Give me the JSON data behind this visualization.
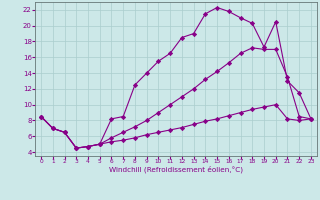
{
  "xlabel": "Windchill (Refroidissement éolien,°C)",
  "background_color": "#cce8e8",
  "grid_color": "#aacece",
  "line_color": "#880088",
  "xlim": [
    -0.5,
    23.5
  ],
  "ylim": [
    3.5,
    23.0
  ],
  "xticks": [
    0,
    1,
    2,
    3,
    4,
    5,
    6,
    7,
    8,
    9,
    10,
    11,
    12,
    13,
    14,
    15,
    16,
    17,
    18,
    19,
    20,
    21,
    22,
    23
  ],
  "yticks": [
    4,
    6,
    8,
    10,
    12,
    14,
    16,
    18,
    20,
    22
  ],
  "curve1_x": [
    0,
    1,
    2,
    3,
    4,
    5,
    6,
    7,
    8,
    9,
    10,
    11,
    12,
    13,
    14,
    15,
    16,
    17,
    18,
    19,
    20,
    21,
    22,
    23
  ],
  "curve1_y": [
    8.5,
    7.0,
    6.5,
    4.5,
    4.7,
    5.0,
    8.2,
    8.5,
    12.5,
    14.0,
    15.5,
    16.5,
    18.5,
    19.0,
    21.5,
    22.3,
    21.8,
    21.0,
    20.3,
    17.3,
    20.5,
    13.0,
    11.5,
    8.2
  ],
  "curve2_x": [
    0,
    1,
    2,
    3,
    4,
    5,
    6,
    7,
    8,
    9,
    10,
    11,
    12,
    13,
    14,
    15,
    16,
    17,
    18,
    19,
    20,
    21,
    22,
    23
  ],
  "curve2_y": [
    8.5,
    7.0,
    6.5,
    4.5,
    4.7,
    5.0,
    5.8,
    6.5,
    7.2,
    8.0,
    9.0,
    10.0,
    11.0,
    12.0,
    13.2,
    14.2,
    15.3,
    16.5,
    17.2,
    17.0,
    17.0,
    13.5,
    8.5,
    8.2
  ],
  "curve3_x": [
    0,
    1,
    2,
    3,
    4,
    5,
    6,
    7,
    8,
    9,
    10,
    11,
    12,
    13,
    14,
    15,
    16,
    17,
    18,
    19,
    20,
    21,
    22,
    23
  ],
  "curve3_y": [
    8.5,
    7.0,
    6.5,
    4.5,
    4.7,
    5.0,
    5.3,
    5.5,
    5.8,
    6.2,
    6.5,
    6.8,
    7.1,
    7.5,
    7.9,
    8.2,
    8.6,
    9.0,
    9.4,
    9.7,
    10.0,
    8.2,
    8.0,
    8.2
  ]
}
